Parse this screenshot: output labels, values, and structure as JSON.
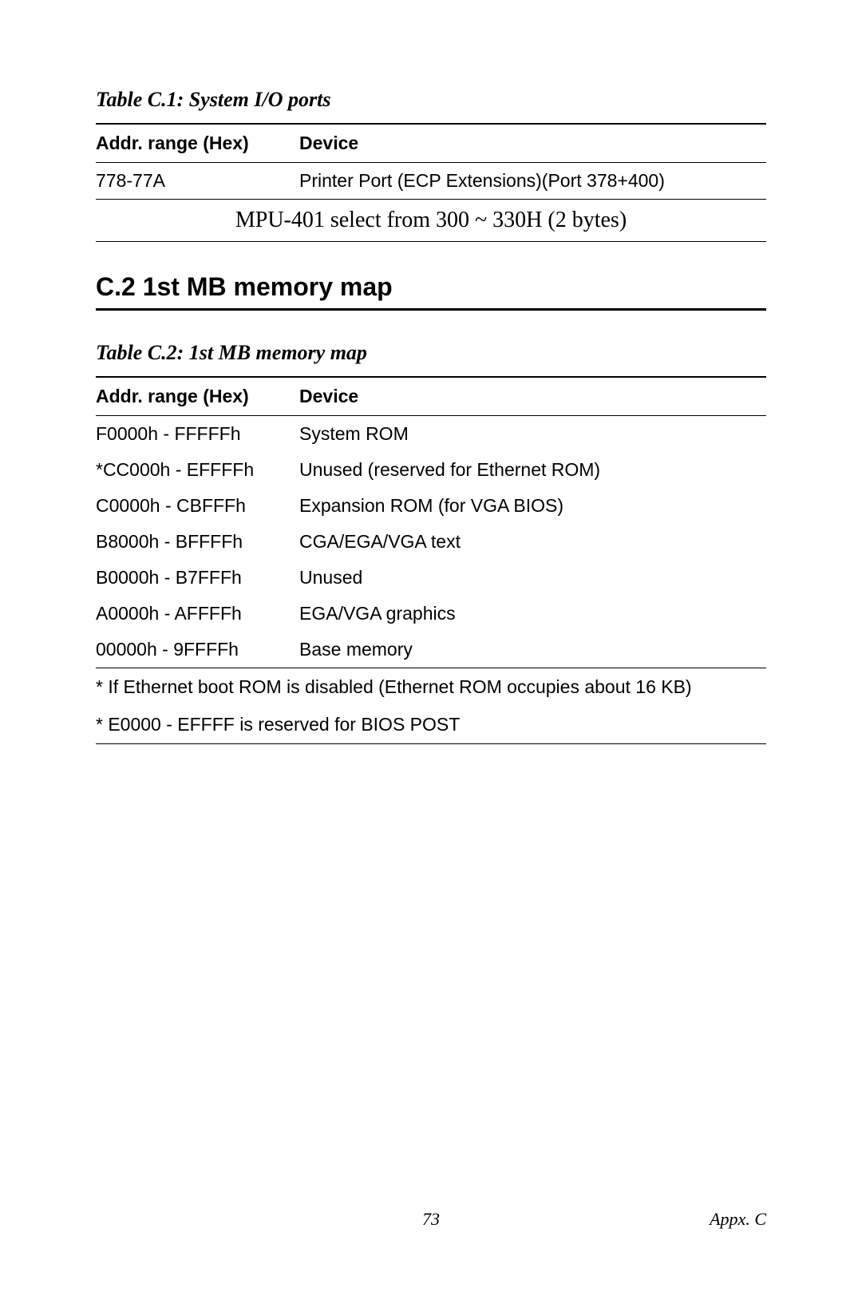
{
  "table1": {
    "caption": "Table C.1: System I/O ports",
    "columns": [
      "Addr. range (Hex)",
      "Device"
    ],
    "rows": [
      {
        "addr": "778-77A",
        "device": "Printer Port (ECP Extensions)(Port 378+400)"
      }
    ],
    "note": "MPU-401 select from 300 ~ 330H (2 bytes)"
  },
  "section": {
    "heading": "C.2 1st MB memory map"
  },
  "table2": {
    "caption": "Table C.2: 1st MB memory map",
    "columns": [
      "Addr. range (Hex)",
      "Device"
    ],
    "rows": [
      {
        "addr": "F0000h - FFFFFh",
        "device": "System ROM"
      },
      {
        "addr": "*CC000h - EFFFFh",
        "device": "Unused (reserved for Ethernet ROM)"
      },
      {
        "addr": "C0000h - CBFFFh",
        "device": "Expansion ROM (for VGA BIOS)"
      },
      {
        "addr": "B8000h - BFFFFh",
        "device": "CGA/EGA/VGA text"
      },
      {
        "addr": "B0000h - B7FFFh",
        "device": "Unused"
      },
      {
        "addr": "A0000h - AFFFFh",
        "device": "EGA/VGA graphics"
      },
      {
        "addr": "00000h - 9FFFFh",
        "device": "Base memory"
      }
    ],
    "footnotes": [
      "* If Ethernet boot ROM is disabled (Ethernet ROM occupies about 16 KB)",
      "* E0000 - EFFFF is reserved for BIOS POST"
    ]
  },
  "footer": {
    "page": "73",
    "section": "Appx. C"
  },
  "styles": {
    "caption_fontsize": 26,
    "heading_fontsize": 32,
    "body_fontsize": 23,
    "note_fontsize": 28,
    "footer_fontsize": 22,
    "text_color": "#000000",
    "background_color": "#ffffff",
    "rule_color": "#000000",
    "col_addr_width": 255
  }
}
